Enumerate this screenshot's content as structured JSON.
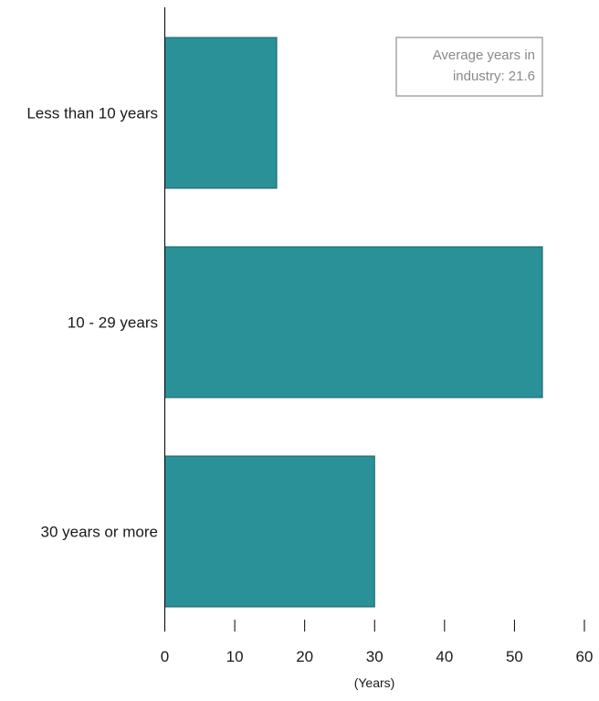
{
  "chart_data": {
    "type": "bar",
    "orientation": "horizontal",
    "categories": [
      "Less than 10 years",
      "10 - 29 years",
      "30 years or more"
    ],
    "values": [
      16,
      54,
      30
    ],
    "title": "",
    "xlabel": "(Years)",
    "ylabel": "",
    "xlim": [
      0,
      60
    ],
    "xticks": [
      0,
      10,
      20,
      30,
      40,
      50,
      60
    ],
    "grid": false,
    "bar_color": "#2a9199",
    "bar_edge_color": "#1b5f63",
    "annotation": {
      "lines": [
        "Average years in",
        "industry: 21.6"
      ],
      "placement": "top-right"
    }
  }
}
